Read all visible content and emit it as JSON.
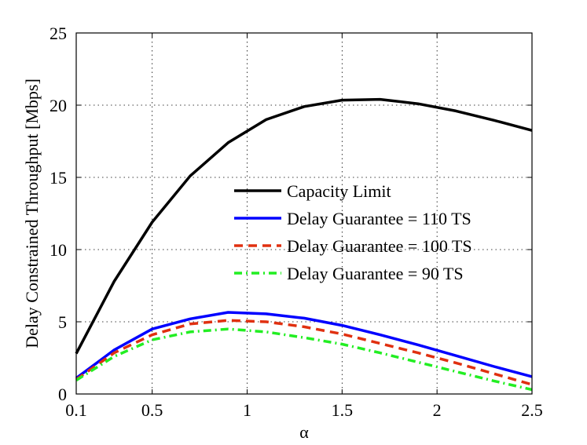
{
  "chart_data": {
    "type": "line",
    "title": "",
    "xlabel": "α",
    "ylabel": "Delay Constrained Throughput [Mbps]",
    "xlim": [
      0.1,
      2.5
    ],
    "ylim": [
      0,
      25
    ],
    "xticks": [
      0.1,
      0.5,
      1,
      1.5,
      2,
      2.5
    ],
    "xtick_labels": [
      "0.1",
      "0.5",
      "1",
      "1.5",
      "2",
      "2.5"
    ],
    "yticks": [
      0,
      5,
      10,
      15,
      20,
      25
    ],
    "ytick_labels": [
      "0",
      "5",
      "10",
      "15",
      "20",
      "25"
    ],
    "grid": true,
    "legend_position": "center-right",
    "x": [
      0.1,
      0.3,
      0.5,
      0.7,
      0.9,
      1.1,
      1.3,
      1.5,
      1.7,
      1.9,
      2.1,
      2.3,
      2.5
    ],
    "series": [
      {
        "name": "Capacity Limit",
        "color": "#000000",
        "style": "solid",
        "values": [
          2.8,
          7.8,
          11.9,
          15.1,
          17.4,
          19.0,
          19.9,
          20.35,
          20.4,
          20.1,
          19.6,
          18.95,
          18.25
        ]
      },
      {
        "name": "Delay Guarantee = 110 TS",
        "color": "#0000ff",
        "style": "solid",
        "values": [
          1.1,
          3.05,
          4.5,
          5.2,
          5.65,
          5.55,
          5.25,
          4.75,
          4.1,
          3.4,
          2.65,
          1.9,
          1.2
        ]
      },
      {
        "name": "Delay Guarantee = 100 TS",
        "color": "#e03010",
        "style": "dashed",
        "values": [
          1.0,
          2.85,
          4.1,
          4.85,
          5.1,
          5.0,
          4.65,
          4.15,
          3.5,
          2.85,
          2.15,
          1.4,
          0.65
        ]
      },
      {
        "name": "Delay Guarantee = 90 TS",
        "color": "#22ee22",
        "style": "dashdot",
        "values": [
          0.95,
          2.6,
          3.75,
          4.3,
          4.5,
          4.3,
          3.9,
          3.45,
          2.85,
          2.2,
          1.55,
          0.9,
          0.3
        ]
      }
    ]
  }
}
